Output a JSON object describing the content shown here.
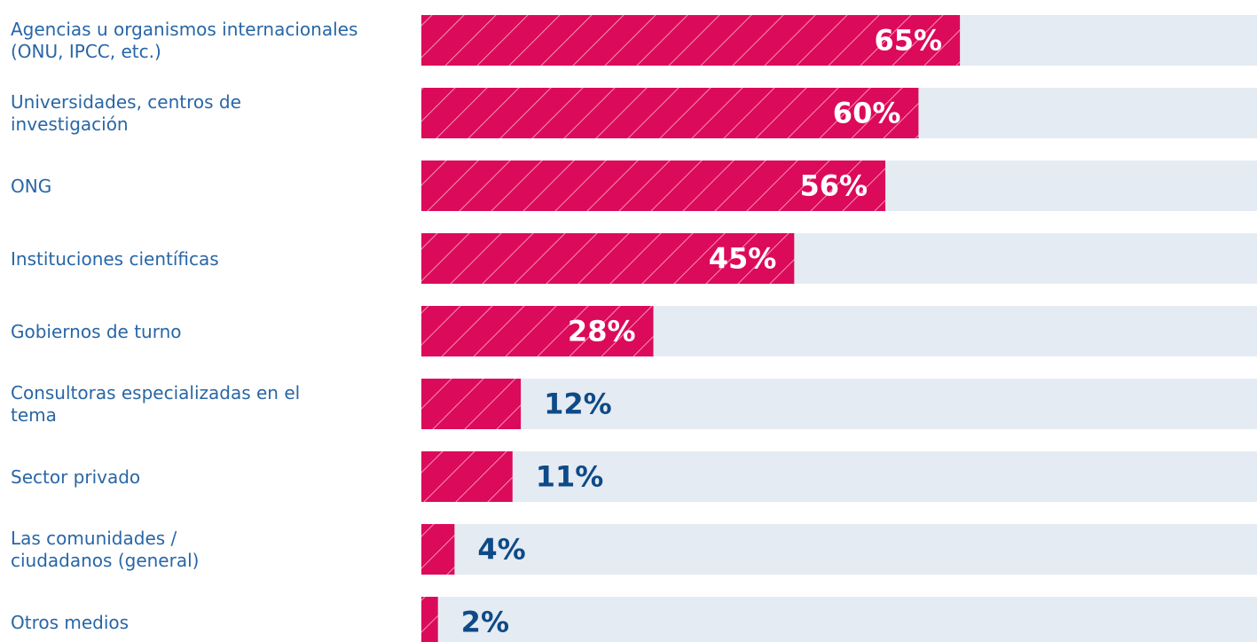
{
  "chart_data": {
    "type": "bar",
    "orientation": "horizontal",
    "categories": [
      "Agencias u organismos internacionales (ONU, IPCC, etc.)",
      "Universidades, centros de investigación",
      "ONG",
      "Instituciones científicas",
      "Gobiernos de turno",
      "Consultoras especializadas en el tema",
      "Sector privado",
      "Las comunidades / ciudadanos (general)",
      "Otros medios"
    ],
    "values": [
      65,
      60,
      56,
      45,
      28,
      12,
      11,
      4,
      2
    ],
    "value_labels": [
      "65%",
      "60%",
      "56%",
      "45%",
      "28%",
      "12%",
      "11%",
      "4%",
      "2%"
    ],
    "color": "#dc0a5a",
    "xlim": [
      0,
      100
    ]
  }
}
